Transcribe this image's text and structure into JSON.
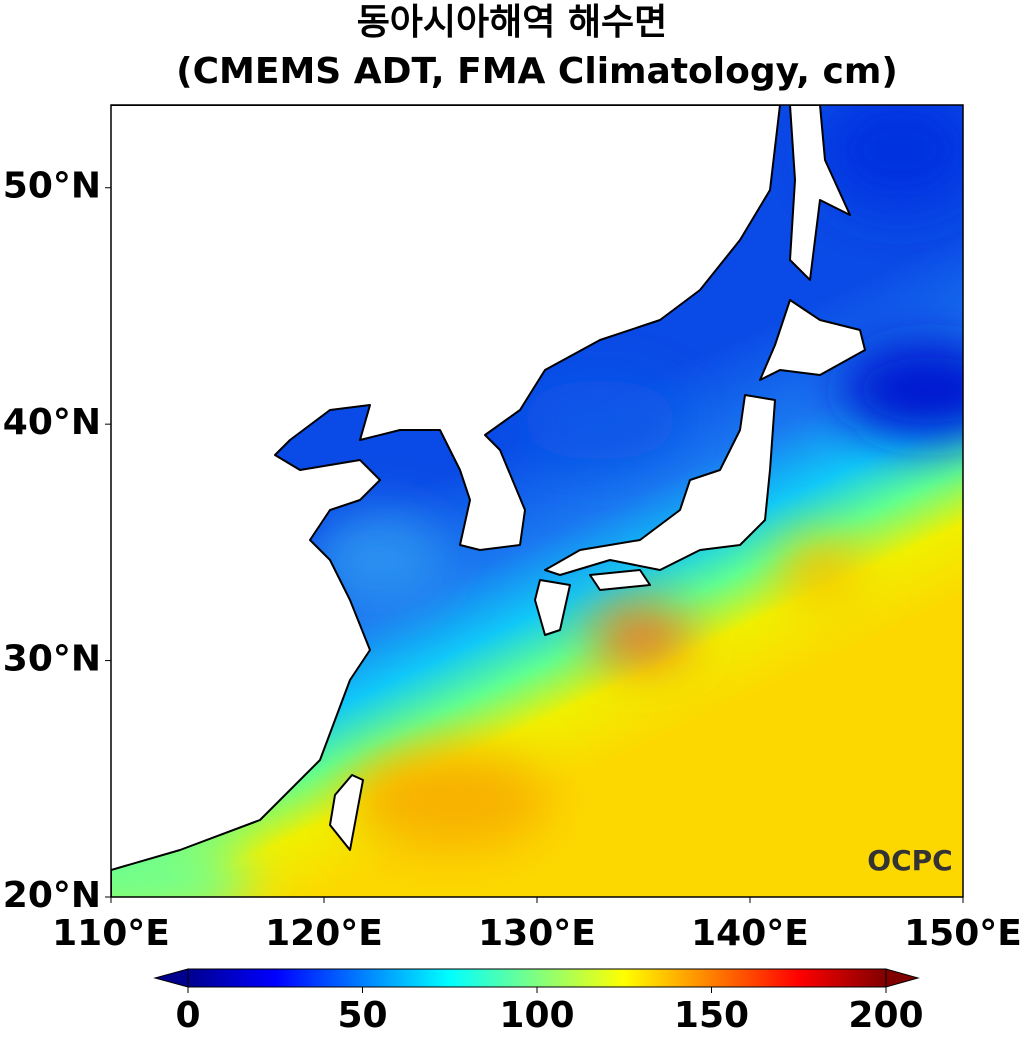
{
  "title": [
    "동아시아해역 해수면",
    "(CMEMS ADT, FMA Climatology, cm)"
  ],
  "map": {
    "xlim": [
      110,
      150
    ],
    "ylim": [
      20,
      53.5
    ],
    "xticks": [
      {
        "value": 110,
        "label": "110°E"
      },
      {
        "value": 120,
        "label": "120°E"
      },
      {
        "value": 130,
        "label": "130°E"
      },
      {
        "value": 140,
        "label": "140°E"
      },
      {
        "value": 150,
        "label": "150°E"
      }
    ],
    "yticks": [
      {
        "value": 20,
        "label": "20°N"
      },
      {
        "value": 30,
        "label": "30°N"
      },
      {
        "value": 40,
        "label": "40°N"
      },
      {
        "value": 50,
        "label": "50°N"
      }
    ]
  },
  "colorbar": {
    "lim": [
      0,
      200
    ],
    "ticks": [
      0,
      50,
      100,
      150,
      200
    ]
  },
  "logo": "OCPC"
}
